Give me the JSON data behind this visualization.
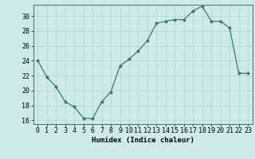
{
  "x": [
    0,
    1,
    2,
    3,
    4,
    5,
    6,
    7,
    8,
    9,
    10,
    11,
    12,
    13,
    14,
    15,
    16,
    17,
    18,
    19,
    20,
    21,
    22,
    23
  ],
  "y": [
    24.0,
    21.8,
    20.5,
    18.5,
    17.8,
    16.3,
    16.2,
    18.5,
    19.8,
    23.3,
    24.2,
    25.3,
    26.7,
    29.0,
    29.3,
    29.5,
    29.5,
    30.7,
    31.3,
    29.3,
    29.3,
    28.4,
    22.3,
    22.3
  ],
  "xlabel": "Humidex (Indice chaleur)",
  "xlim": [
    -0.5,
    23.5
  ],
  "ylim": [
    15.5,
    31.5
  ],
  "yticks": [
    16,
    18,
    20,
    22,
    24,
    26,
    28,
    30
  ],
  "xticks": [
    0,
    1,
    2,
    3,
    4,
    5,
    6,
    7,
    8,
    9,
    10,
    11,
    12,
    13,
    14,
    15,
    16,
    17,
    18,
    19,
    20,
    21,
    22,
    23
  ],
  "line_color": "#2e7d6e",
  "marker_color": "#2e7d6e",
  "bg_color": "#ceeaea",
  "grid_color": "#aad4d4",
  "axis_fontsize": 6.5,
  "tick_fontsize": 6.0
}
